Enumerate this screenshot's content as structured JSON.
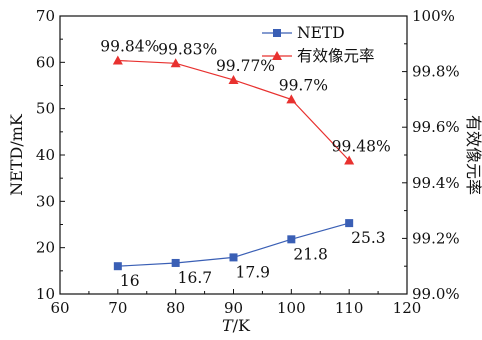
{
  "chart_data": {
    "type": "line",
    "xlabel_italic": "T",
    "xlabel_unit": "/K",
    "ylabel_left": "NETD/mK",
    "ylabel_right": "有效像元率",
    "x_ticks": [
      "60",
      "70",
      "80",
      "90",
      "100",
      "110",
      "120"
    ],
    "y_left_ticks": [
      "10",
      "20",
      "30",
      "40",
      "50",
      "60",
      "70"
    ],
    "y_right_ticks": [
      "99.0%",
      "99.2%",
      "99.4%",
      "99.6%",
      "99.8%",
      "100%"
    ],
    "xlim": [
      60,
      120
    ],
    "ylim_left": [
      10,
      70
    ],
    "ylim_right": [
      99.0,
      100.0
    ],
    "x": [
      70,
      80,
      90,
      100,
      110
    ],
    "series": [
      {
        "name": "NETD",
        "axis": "left",
        "marker": "square",
        "color": "#3a5fb5",
        "values": [
          16,
          16.7,
          17.9,
          21.8,
          25.3
        ],
        "labels": [
          "16",
          "16.7",
          "17.9",
          "21.8",
          "25.3"
        ]
      },
      {
        "name": "有效像元率",
        "axis": "right",
        "marker": "triangle",
        "color": "#e8312f",
        "values": [
          99.84,
          99.83,
          99.77,
          99.7,
          99.48
        ],
        "labels": [
          "99.84%",
          "99.83%",
          "99.77%",
          "99.7%",
          "99.48%"
        ]
      }
    ],
    "legend_position": "top-right inside",
    "grid": false
  }
}
